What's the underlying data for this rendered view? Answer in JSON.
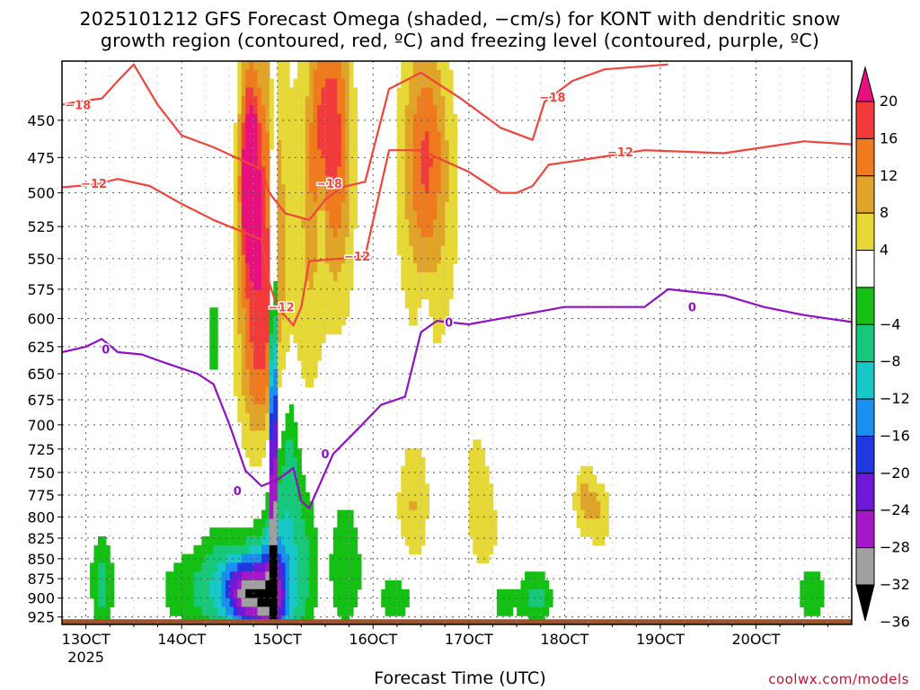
{
  "title": {
    "line1": "2025101212 GFS Forecast Omega (shaded, −cm/s) for KONT with dendritic snow",
    "line2": "growth region (contoured, red, ºC) and freezing level (contoured, purple, ºC)"
  },
  "credit": "coolwx.com/models",
  "chart_data": {
    "type": "heatmap",
    "xlabel": "Forecast Time (UTC)",
    "ylabel": "",
    "x_ticks": [
      "13OCT",
      "14OCT",
      "15OCT",
      "16OCT",
      "17OCT",
      "18OCT",
      "19OCT",
      "20OCT"
    ],
    "x_sublabel": "2025",
    "x_range_hours": [
      -6,
      192
    ],
    "y_ticks": [
      450,
      475,
      500,
      525,
      550,
      575,
      600,
      625,
      650,
      675,
      700,
      725,
      750,
      775,
      800,
      825,
      850,
      875,
      900,
      925
    ],
    "y_range_hpa": [
      413,
      935
    ],
    "y_scale": "log-pressure",
    "grid": true,
    "colorbar": {
      "labels": [
        "20",
        "16",
        "12",
        "8",
        "4",
        "−4",
        "−8",
        "−12",
        "−16",
        "−20",
        "−24",
        "−28",
        "−32",
        "−36"
      ],
      "bins": [
        {
          "lo": 20,
          "hi": 99,
          "color": "#e8107e"
        },
        {
          "lo": 16,
          "hi": 20,
          "color": "#f23b3b"
        },
        {
          "lo": 12,
          "hi": 16,
          "color": "#f07a1e"
        },
        {
          "lo": 8,
          "hi": 12,
          "color": "#e0a428"
        },
        {
          "lo": 4,
          "hi": 8,
          "color": "#e6d836"
        },
        {
          "lo": -4,
          "hi": 4,
          "color": "#ffffff"
        },
        {
          "lo": -8,
          "hi": -4,
          "color": "#15c015"
        },
        {
          "lo": -12,
          "hi": -8,
          "color": "#17c77a"
        },
        {
          "lo": -16,
          "hi": -12,
          "color": "#18c8c8"
        },
        {
          "lo": -20,
          "hi": -16,
          "color": "#1a8ff0"
        },
        {
          "lo": -24,
          "hi": -20,
          "color": "#2038e0"
        },
        {
          "lo": -28,
          "hi": -24,
          "color": "#6e18d8"
        },
        {
          "lo": -32,
          "hi": -28,
          "color": "#a518c8"
        },
        {
          "lo": -36,
          "hi": -32,
          "color": "#a0a0a0"
        },
        {
          "lo": -99,
          "hi": -36,
          "color": "#000000"
        }
      ]
    },
    "omega_features": [
      {
        "t": 41,
        "p": 490,
        "st": 1.6,
        "sp": 45,
        "v": 24
      },
      {
        "t": 43,
        "p": 560,
        "st": 3.5,
        "sp": 130,
        "v": 12
      },
      {
        "t": 42,
        "p": 620,
        "st": 3.5,
        "sp": 60,
        "v": 5
      },
      {
        "t": 47,
        "p": 560,
        "st": 2.8,
        "sp": 130,
        "v": 8
      },
      {
        "t": 55,
        "p": 560,
        "st": 3.2,
        "sp": 130,
        "v": 7
      },
      {
        "t": 58,
        "p": 470,
        "st": 1.8,
        "sp": 60,
        "v": 7
      },
      {
        "t": 62,
        "p": 450,
        "st": 3,
        "sp": 70,
        "v": 14
      },
      {
        "t": 64,
        "p": 520,
        "st": 3,
        "sp": 90,
        "v": 5
      },
      {
        "t": 85,
        "p": 470,
        "st": 4,
        "sp": 55,
        "v": 12
      },
      {
        "t": 86,
        "p": 540,
        "st": 6,
        "sp": 100,
        "v": 6
      },
      {
        "t": 111,
        "p": 450,
        "st": 4,
        "sp": 40,
        "v": 4
      },
      {
        "t": 127,
        "p": 450,
        "st": 2.5,
        "sp": 40,
        "v": 4
      },
      {
        "t": 82,
        "p": 790,
        "st": 3,
        "sp": 50,
        "v": 8
      },
      {
        "t": 98,
        "p": 770,
        "st": 2.5,
        "sp": 60,
        "v": 6
      },
      {
        "t": 102,
        "p": 830,
        "st": 3,
        "sp": 50,
        "v": 4
      },
      {
        "t": 125,
        "p": 780,
        "st": 2,
        "sp": 30,
        "v": 9
      },
      {
        "t": 129,
        "p": 800,
        "st": 2,
        "sp": 30,
        "v": 7
      },
      {
        "t": 48,
        "p": 870,
        "st": 4,
        "sp": 90,
        "v": -14
      },
      {
        "t": 46,
        "p": 900,
        "st": 3,
        "sp": 40,
        "v": -22
      },
      {
        "t": 51,
        "p": 720,
        "st": 2,
        "sp": 60,
        "v": -9
      },
      {
        "t": 55,
        "p": 850,
        "st": 2.5,
        "sp": 80,
        "v": -7
      },
      {
        "t": 36,
        "p": 885,
        "st": 5,
        "sp": 50,
        "v": -12
      },
      {
        "t": 40,
        "p": 895,
        "st": 3,
        "sp": 30,
        "v": -22
      },
      {
        "t": 26,
        "p": 890,
        "st": 7,
        "sp": 40,
        "v": -6
      },
      {
        "t": 4,
        "p": 880,
        "st": 2,
        "sp": 45,
        "v": -10
      },
      {
        "t": 32,
        "p": 620,
        "st": 1,
        "sp": 40,
        "v": -6
      },
      {
        "t": 59,
        "p": 520,
        "st": 1,
        "sp": 30,
        "v": -7
      },
      {
        "t": 65,
        "p": 860,
        "st": 3,
        "sp": 60,
        "v": -8
      },
      {
        "t": 78,
        "p": 900,
        "st": 4,
        "sp": 30,
        "v": -6
      },
      {
        "t": 85,
        "p": 615,
        "st": 1.2,
        "sp": 30,
        "v": -5
      },
      {
        "t": 104,
        "p": 900,
        "st": 3,
        "sp": 30,
        "v": -6
      },
      {
        "t": 113,
        "p": 900,
        "st": 3,
        "sp": 25,
        "v": -10
      },
      {
        "t": 182,
        "p": 895,
        "st": 5,
        "sp": 40,
        "v": -5
      },
      {
        "t": 47,
        "p": 705,
        "st": 0.6,
        "sp": 150,
        "v": -40
      }
    ],
    "dgz_contours": [
      {
        "label": "−18",
        "points": [
          [
            -6,
            440
          ],
          [
            -2,
            438
          ],
          [
            4,
            436
          ],
          [
            8,
            425
          ],
          [
            12,
            415
          ],
          [
            18,
            440
          ],
          [
            24,
            460
          ],
          [
            32,
            468
          ],
          [
            40,
            478
          ],
          [
            44,
            483
          ],
          [
            46,
            500
          ],
          [
            50,
            515
          ],
          [
            56,
            520
          ],
          [
            60,
            505
          ],
          [
            64,
            496
          ],
          [
            70,
            492
          ],
          [
            76,
            430
          ],
          [
            84,
            420
          ],
          [
            94,
            436
          ],
          [
            104,
            455
          ],
          [
            112,
            463
          ],
          [
            115,
            438
          ],
          [
            122,
            425
          ],
          [
            130,
            418
          ],
          [
            146,
            415
          ]
        ]
      },
      {
        "label": "−12",
        "points": [
          [
            -6,
            496
          ],
          [
            2,
            494
          ],
          [
            8,
            490
          ],
          [
            16,
            495
          ],
          [
            24,
            508
          ],
          [
            32,
            520
          ],
          [
            40,
            530
          ],
          [
            44,
            535
          ],
          [
            46,
            570
          ],
          [
            48,
            590
          ],
          [
            52,
            606
          ],
          [
            54,
            590
          ],
          [
            56,
            552
          ],
          [
            64,
            550
          ],
          [
            70,
            548
          ],
          [
            76,
            470
          ],
          [
            84,
            470
          ],
          [
            96,
            485
          ],
          [
            104,
            500
          ],
          [
            108,
            500
          ],
          [
            112,
            495
          ],
          [
            116,
            480
          ],
          [
            126,
            476
          ],
          [
            140,
            470
          ],
          [
            160,
            472
          ],
          [
            180,
            464
          ],
          [
            192,
            466
          ]
        ]
      },
      {
        "label": "0",
        "points": [
          [
            -6,
            630
          ],
          [
            0,
            625
          ],
          [
            4,
            618
          ],
          [
            8,
            630
          ],
          [
            14,
            632
          ],
          [
            20,
            640
          ],
          [
            28,
            650
          ],
          [
            32,
            660
          ],
          [
            36,
            700
          ],
          [
            40,
            748
          ],
          [
            44,
            765
          ],
          [
            48,
            758
          ],
          [
            50,
            752
          ],
          [
            52,
            745
          ],
          [
            54,
            782
          ],
          [
            56,
            790
          ],
          [
            62,
            730
          ],
          [
            68,
            705
          ],
          [
            74,
            680
          ],
          [
            80,
            672
          ],
          [
            84,
            612
          ],
          [
            88,
            602
          ],
          [
            96,
            605
          ],
          [
            104,
            600
          ],
          [
            120,
            590
          ],
          [
            140,
            590
          ],
          [
            146,
            575
          ],
          [
            160,
            580
          ],
          [
            170,
            590
          ],
          [
            180,
            597
          ],
          [
            192,
            603
          ]
        ]
      }
    ],
    "dgz_contour_colors": [
      "#f0443c",
      "#f0443c",
      "#9010c8"
    ],
    "label_positions": [
      {
        "text": "−18",
        "t": -2,
        "p": 440,
        "color": "#f0443c"
      },
      {
        "text": "−18",
        "t": 61,
        "p": 493,
        "color": "#f0443c"
      },
      {
        "text": "−18",
        "t": 117,
        "p": 435,
        "color": "#f0443c"
      },
      {
        "text": "−12",
        "t": 2,
        "p": 493,
        "color": "#f0443c"
      },
      {
        "text": "−12",
        "t": 49,
        "p": 590,
        "color": "#f0443c"
      },
      {
        "text": "−12",
        "t": 68,
        "p": 548,
        "color": "#f0443c"
      },
      {
        "text": "−12",
        "t": 134,
        "p": 471,
        "color": "#f0443c"
      },
      {
        "text": "0",
        "t": 5,
        "p": 627,
        "color": "#9010c8"
      },
      {
        "text": "0",
        "t": 38,
        "p": 770,
        "color": "#9010c8"
      },
      {
        "text": "0",
        "t": 60,
        "p": 730,
        "color": "#9010c8"
      },
      {
        "text": "0",
        "t": 91,
        "p": 603,
        "color": "#9010c8"
      },
      {
        "text": "0",
        "t": 152,
        "p": 590,
        "color": "#9010c8"
      }
    ],
    "ground_color": "#a0522d"
  }
}
